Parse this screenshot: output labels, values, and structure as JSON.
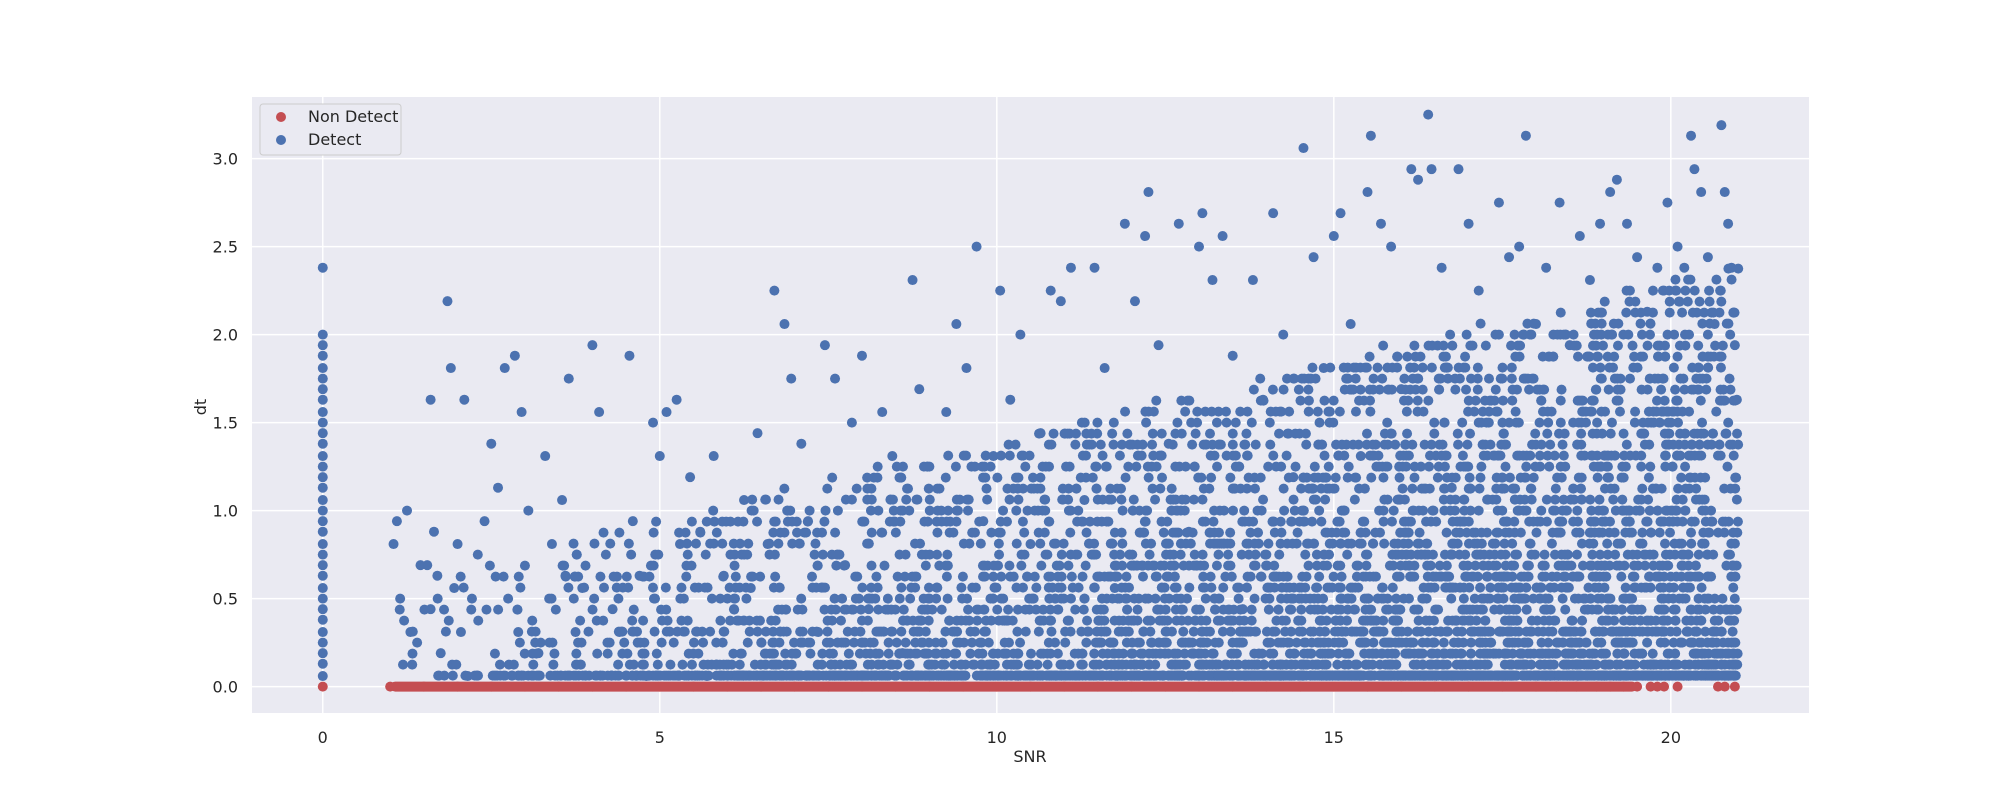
{
  "chart_data": {
    "type": "scatter",
    "title": "",
    "xlabel": "SNR",
    "ylabel": "dt",
    "xlim": [
      -1.05,
      22.05
    ],
    "ylim": [
      -0.15,
      3.35
    ],
    "xticks": [
      0,
      5,
      10,
      15,
      20
    ],
    "xtick_labels": [
      "0",
      "5",
      "10",
      "15",
      "20"
    ],
    "yticks": [
      0.0,
      0.5,
      1.0,
      1.5,
      2.0,
      2.5,
      3.0
    ],
    "ytick_labels": [
      "0.0",
      "0.5",
      "1.0",
      "1.5",
      "2.0",
      "2.5",
      "3.0"
    ],
    "grid": true,
    "legend_position": "top-left",
    "colors": {
      "background": "#eaeaf2",
      "grid": "#ffffff",
      "non_detect": "#c44e52",
      "detect": "#4c72b0"
    },
    "series": [
      {
        "name": "Non Detect",
        "color": "#c44e52",
        "points": [
          [
            0.0,
            0.0
          ],
          [
            1.0,
            0.0
          ],
          [
            1.5,
            0.0
          ],
          [
            2.0,
            0.0
          ],
          [
            2.5,
            0.0
          ],
          [
            3.0,
            0.0
          ],
          [
            3.5,
            0.0
          ],
          [
            4.0,
            0.0
          ],
          [
            4.5,
            0.0
          ],
          [
            5.0,
            0.0
          ],
          [
            5.5,
            0.0
          ],
          [
            6.0,
            0.0
          ],
          [
            6.5,
            0.0
          ],
          [
            7.0,
            0.0
          ],
          [
            7.5,
            0.0
          ],
          [
            8.0,
            0.0
          ],
          [
            8.5,
            0.0
          ],
          [
            9.0,
            0.0
          ],
          [
            9.5,
            0.0
          ],
          [
            10.0,
            0.0
          ],
          [
            10.5,
            0.0
          ],
          [
            11.0,
            0.0
          ],
          [
            11.5,
            0.0
          ],
          [
            12.0,
            0.0
          ],
          [
            12.5,
            0.0
          ],
          [
            13.0,
            0.0
          ],
          [
            13.5,
            0.0
          ],
          [
            14.0,
            0.0
          ],
          [
            14.5,
            0.0
          ],
          [
            15.0,
            0.0
          ],
          [
            15.5,
            0.0
          ],
          [
            16.0,
            0.0
          ],
          [
            16.5,
            0.0
          ],
          [
            17.0,
            0.0
          ],
          [
            17.5,
            0.0
          ],
          [
            18.0,
            0.0
          ],
          [
            18.3,
            0.0
          ],
          [
            18.6,
            0.0
          ],
          [
            18.9,
            0.0
          ],
          [
            19.1,
            0.0
          ],
          [
            19.3,
            0.0
          ],
          [
            19.5,
            0.0
          ],
          [
            19.7,
            0.0
          ],
          [
            19.8,
            0.0
          ],
          [
            19.9,
            0.0
          ],
          [
            20.1,
            0.0
          ],
          [
            20.7,
            0.0
          ],
          [
            20.8,
            0.0
          ],
          [
            20.95,
            0.0
          ]
        ]
      },
      {
        "name": "Detect",
        "color": "#4c72b0",
        "points": [
          [
            0.0,
            2.38
          ],
          [
            0.0,
            2.0
          ],
          [
            0.0,
            1.94
          ],
          [
            0.0,
            1.88
          ],
          [
            0.0,
            1.81
          ],
          [
            0.0,
            1.75
          ],
          [
            0.0,
            1.69
          ],
          [
            0.0,
            1.63
          ],
          [
            0.0,
            1.56
          ],
          [
            0.0,
            1.5
          ],
          [
            0.0,
            1.44
          ],
          [
            0.0,
            1.38
          ],
          [
            0.0,
            1.31
          ],
          [
            0.0,
            1.25
          ],
          [
            0.0,
            1.19
          ],
          [
            0.0,
            1.13
          ],
          [
            0.0,
            1.06
          ],
          [
            0.0,
            1.0
          ],
          [
            0.0,
            0.94
          ],
          [
            0.0,
            0.88
          ],
          [
            0.0,
            0.81
          ],
          [
            0.0,
            0.75
          ],
          [
            0.0,
            0.69
          ],
          [
            0.0,
            0.63
          ],
          [
            0.0,
            0.56
          ],
          [
            0.0,
            0.5
          ],
          [
            0.0,
            0.44
          ],
          [
            0.0,
            0.38
          ],
          [
            0.0,
            0.31
          ],
          [
            0.0,
            0.25
          ],
          [
            0.0,
            0.19
          ],
          [
            0.0,
            0.13
          ],
          [
            0.0,
            0.06
          ],
          [
            1.05,
            0.81
          ],
          [
            1.1,
            0.94
          ],
          [
            1.25,
            1.0
          ],
          [
            1.3,
            0.31
          ],
          [
            1.4,
            0.25
          ],
          [
            1.45,
            0.69
          ],
          [
            1.55,
            0.69
          ],
          [
            1.6,
            0.44
          ],
          [
            1.6,
            1.63
          ],
          [
            1.65,
            0.88
          ],
          [
            1.7,
            0.63
          ],
          [
            1.75,
            0.19
          ],
          [
            1.85,
            2.19
          ],
          [
            1.9,
            1.81
          ],
          [
            1.95,
            0.56
          ],
          [
            2.0,
            0.81
          ],
          [
            2.05,
            0.31
          ],
          [
            2.1,
            1.63
          ],
          [
            2.15,
            0.06
          ],
          [
            2.3,
            0.75
          ],
          [
            2.4,
            0.94
          ],
          [
            2.5,
            1.38
          ],
          [
            2.6,
            1.13
          ],
          [
            2.7,
            1.81
          ],
          [
            2.75,
            0.5
          ],
          [
            2.85,
            1.88
          ],
          [
            2.9,
            0.31
          ],
          [
            2.95,
            1.56
          ],
          [
            3.05,
            1.0
          ],
          [
            3.2,
            0.19
          ],
          [
            3.3,
            1.31
          ],
          [
            3.4,
            0.81
          ],
          [
            3.55,
            1.06
          ],
          [
            3.6,
            0.63
          ],
          [
            3.65,
            1.75
          ],
          [
            3.75,
            0.31
          ],
          [
            3.85,
            0.56
          ],
          [
            4.0,
            1.94
          ],
          [
            4.1,
            1.56
          ],
          [
            4.2,
            0.75
          ],
          [
            4.3,
            0.44
          ],
          [
            4.4,
            0.31
          ],
          [
            4.55,
            1.88
          ],
          [
            4.6,
            0.94
          ],
          [
            4.7,
            0.63
          ],
          [
            4.8,
            0.06
          ],
          [
            4.9,
            1.5
          ],
          [
            5.0,
            1.31
          ],
          [
            5.1,
            1.56
          ],
          [
            5.25,
            1.63
          ],
          [
            5.3,
            0.81
          ],
          [
            5.45,
            1.19
          ],
          [
            5.6,
            0.88
          ],
          [
            5.7,
            0.06
          ],
          [
            5.8,
            1.31
          ],
          [
            5.95,
            0.63
          ],
          [
            6.1,
            0.44
          ],
          [
            6.25,
            1.06
          ],
          [
            6.35,
            0.56
          ],
          [
            6.45,
            1.44
          ],
          [
            6.6,
            0.81
          ],
          [
            6.7,
            2.25
          ],
          [
            6.85,
            2.06
          ],
          [
            6.95,
            1.75
          ],
          [
            7.1,
            1.38
          ],
          [
            7.2,
            0.94
          ],
          [
            7.35,
            0.31
          ],
          [
            7.45,
            1.94
          ],
          [
            7.6,
            1.75
          ],
          [
            7.75,
            0.69
          ],
          [
            7.85,
            1.5
          ],
          [
            8.0,
            1.88
          ],
          [
            8.1,
            0.44
          ],
          [
            8.3,
            1.56
          ],
          [
            8.45,
            1.31
          ],
          [
            8.6,
            0.19
          ],
          [
            8.75,
            2.31
          ],
          [
            8.85,
            1.69
          ],
          [
            9.0,
            1.25
          ],
          [
            9.1,
            0.5
          ],
          [
            9.25,
            1.56
          ],
          [
            9.4,
            2.06
          ],
          [
            9.55,
            1.81
          ],
          [
            9.7,
            2.5
          ],
          [
            9.8,
            0.94
          ],
          [
            9.95,
            1.31
          ],
          [
            10.05,
            2.25
          ],
          [
            10.2,
            1.63
          ],
          [
            10.35,
            2.0
          ],
          [
            10.5,
            0.81
          ],
          [
            10.65,
            1.44
          ],
          [
            10.8,
            2.25
          ],
          [
            10.95,
            2.19
          ],
          [
            11.1,
            2.38
          ],
          [
            11.3,
            1.06
          ],
          [
            11.45,
            2.38
          ],
          [
            11.6,
            1.81
          ],
          [
            11.75,
            0.56
          ],
          [
            11.9,
            2.63
          ],
          [
            12.05,
            2.19
          ],
          [
            12.2,
            2.56
          ],
          [
            12.25,
            2.81
          ],
          [
            12.4,
            1.94
          ],
          [
            12.55,
            1.38
          ],
          [
            12.7,
            2.63
          ],
          [
            12.85,
            0.88
          ],
          [
            13.0,
            2.5
          ],
          [
            13.05,
            2.69
          ],
          [
            13.2,
            2.31
          ],
          [
            13.35,
            2.56
          ],
          [
            13.5,
            1.88
          ],
          [
            13.65,
            0.44
          ],
          [
            13.8,
            2.31
          ],
          [
            13.95,
            1.63
          ],
          [
            14.1,
            2.69
          ],
          [
            14.25,
            2.0
          ],
          [
            14.4,
            1.19
          ],
          [
            14.55,
            3.06
          ],
          [
            14.7,
            2.44
          ],
          [
            14.85,
            1.81
          ],
          [
            15.0,
            2.56
          ],
          [
            15.1,
            2.69
          ],
          [
            15.25,
            2.06
          ],
          [
            15.4,
            1.31
          ],
          [
            15.5,
            2.81
          ],
          [
            15.55,
            3.13
          ],
          [
            15.7,
            2.63
          ],
          [
            15.85,
            2.5
          ],
          [
            16.0,
            1.69
          ],
          [
            16.15,
            2.94
          ],
          [
            16.25,
            2.88
          ],
          [
            16.4,
            3.25
          ],
          [
            16.45,
            2.94
          ],
          [
            16.6,
            2.38
          ],
          [
            16.75,
            1.13
          ],
          [
            16.85,
            2.94
          ],
          [
            17.0,
            2.63
          ],
          [
            17.15,
            2.25
          ],
          [
            17.3,
            1.5
          ],
          [
            17.45,
            2.75
          ],
          [
            17.6,
            2.44
          ],
          [
            17.75,
            2.5
          ],
          [
            17.85,
            3.13
          ],
          [
            18.0,
            2.06
          ],
          [
            18.15,
            2.38
          ],
          [
            18.35,
            2.75
          ],
          [
            18.5,
            1.94
          ],
          [
            18.65,
            2.56
          ],
          [
            18.8,
            2.31
          ],
          [
            18.95,
            2.63
          ],
          [
            19.1,
            2.81
          ],
          [
            19.2,
            2.88
          ],
          [
            19.35,
            2.63
          ],
          [
            19.5,
            2.44
          ],
          [
            19.65,
            2.13
          ],
          [
            19.8,
            2.38
          ],
          [
            19.95,
            2.75
          ],
          [
            20.1,
            2.5
          ],
          [
            20.2,
            2.38
          ],
          [
            20.3,
            3.13
          ],
          [
            20.35,
            2.94
          ],
          [
            20.45,
            2.81
          ],
          [
            20.55,
            2.44
          ],
          [
            20.65,
            2.06
          ],
          [
            20.75,
            3.19
          ],
          [
            20.8,
            2.81
          ],
          [
            20.85,
            2.63
          ],
          [
            20.9,
            2.38
          ],
          [
            20.95,
            1.94
          ],
          [
            20.98,
            1.63
          ]
        ]
      }
    ]
  }
}
